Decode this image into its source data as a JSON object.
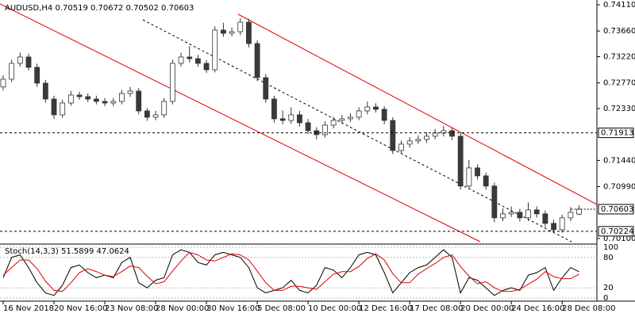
{
  "chart_data": [
    {
      "type": "candlestick",
      "title": "AUDUSD,H4  0.70519 0.70672 0.70502 0.70603",
      "categories": [
        "16 Nov 2018",
        null,
        null,
        null,
        null,
        null,
        "20 Nov 16:00",
        null,
        null,
        null,
        null,
        null,
        "23 Nov 08:00",
        null,
        null,
        null,
        null,
        null,
        "28 Nov 00:00",
        null,
        null,
        null,
        null,
        null,
        "30 Nov 16:00",
        null,
        null,
        null,
        null,
        null,
        "5 Dec 08:00",
        null,
        null,
        null,
        null,
        null,
        "10 Dec 00:00",
        null,
        null,
        null,
        null,
        null,
        "12 Dec 16:00",
        null,
        null,
        null,
        null,
        null,
        "17 Dec 08:00",
        null,
        null,
        null,
        null,
        null,
        "20 Dec 00:00",
        null,
        null,
        null,
        null,
        null,
        "24 Dec 16:00",
        null,
        null,
        null,
        null,
        null,
        "28 Dec 08:00",
        null,
        null
      ],
      "open": [
        0.727,
        0.72833,
        0.73105,
        0.73214,
        0.73037,
        0.72765,
        0.72493,
        0.72222,
        0.72425,
        0.72561,
        0.72534,
        0.72493,
        0.72452,
        0.72425,
        0.72452,
        0.72588,
        0.72629,
        0.72289,
        0.72181,
        0.72222,
        0.72452,
        0.73105,
        0.73214,
        0.73186,
        0.73105,
        0.72996,
        0.73676,
        0.73621,
        0.73648,
        0.73811,
        0.73445,
        0.7286,
        0.72493,
        0.72154,
        0.72126,
        0.72222,
        0.72086,
        0.7195,
        0.71882,
        0.72045,
        0.72126,
        0.72154,
        0.72181,
        0.72289,
        0.72357,
        0.72317,
        0.72126,
        0.7161,
        0.71719,
        0.71773,
        0.718,
        0.71855,
        0.71909,
        0.7195,
        0.71855,
        0.71,
        0.71311,
        0.71175,
        0.71,
        0.70455,
        0.70523,
        0.7055,
        0.70455,
        0.70591,
        0.70523,
        0.7036,
        0.70251,
        0.70455,
        0.70519
      ],
      "high": [
        0.729,
        0.7317,
        0.7329,
        0.7327,
        0.731,
        0.7282,
        0.7255,
        0.7248,
        0.7263,
        0.7262,
        0.7259,
        0.7255,
        0.7251,
        0.7251,
        0.7265,
        0.727,
        0.7268,
        0.7234,
        0.7229,
        0.7251,
        0.7317,
        0.7329,
        0.734,
        0.7325,
        0.7316,
        0.7374,
        0.738,
        0.7372,
        0.7388,
        0.7387,
        0.735,
        0.7292,
        0.7255,
        0.723,
        0.7235,
        0.7229,
        0.7215,
        0.7201,
        0.7211,
        0.7219,
        0.7222,
        0.7225,
        0.7235,
        0.7245,
        0.7242,
        0.7237,
        0.7218,
        0.7178,
        0.7184,
        0.7187,
        0.7192,
        0.7198,
        0.7203,
        0.7201,
        0.7191,
        0.7145,
        0.7137,
        0.7123,
        0.7106,
        0.7062,
        0.7065,
        0.7061,
        0.7072,
        0.7065,
        0.7058,
        0.7042,
        0.7051,
        0.7064,
        0.70672
      ],
      "low": [
        0.7264,
        0.7278,
        0.7305,
        0.7298,
        0.727,
        0.7243,
        0.7215,
        0.7217,
        0.7238,
        0.7248,
        0.7244,
        0.724,
        0.7237,
        0.7237,
        0.724,
        0.7253,
        0.7223,
        0.7212,
        0.7213,
        0.7217,
        0.724,
        0.7305,
        0.7312,
        0.7305,
        0.7294,
        0.7295,
        0.7356,
        0.7357,
        0.7359,
        0.7338,
        0.728,
        0.7243,
        0.7209,
        0.7206,
        0.7207,
        0.7202,
        0.7189,
        0.718,
        0.7183,
        0.7199,
        0.7207,
        0.721,
        0.7213,
        0.7223,
        0.7226,
        0.7206,
        0.7155,
        0.7155,
        0.7166,
        0.7172,
        0.7174,
        0.718,
        0.7185,
        0.7179,
        0.7094,
        0.7095,
        0.7111,
        0.7094,
        0.7038,
        0.704,
        0.7047,
        0.7039,
        0.704,
        0.7046,
        0.703,
        0.702,
        0.702,
        0.704,
        0.70502
      ],
      "close": [
        0.72833,
        0.73105,
        0.73214,
        0.73037,
        0.72765,
        0.72493,
        0.72222,
        0.72425,
        0.72561,
        0.72534,
        0.72493,
        0.72452,
        0.72425,
        0.72452,
        0.72588,
        0.72629,
        0.72289,
        0.72181,
        0.72222,
        0.72452,
        0.73105,
        0.73214,
        0.73186,
        0.73105,
        0.72996,
        0.73676,
        0.73621,
        0.73648,
        0.73811,
        0.73445,
        0.7286,
        0.72493,
        0.72154,
        0.72126,
        0.72222,
        0.72086,
        0.7195,
        0.71882,
        0.72045,
        0.72126,
        0.72154,
        0.72181,
        0.72289,
        0.72357,
        0.72317,
        0.72126,
        0.7161,
        0.71719,
        0.71773,
        0.718,
        0.71855,
        0.71909,
        0.7195,
        0.71855,
        0.71,
        0.71311,
        0.71175,
        0.71,
        0.70455,
        0.70523,
        0.7055,
        0.70455,
        0.70591,
        0.70523,
        0.7036,
        0.70251,
        0.70455,
        0.7055,
        0.70603
      ],
      "ylim": [
        0.70018,
        0.74192
      ],
      "yticks": [
        {
          "value": 0.7411,
          "label": "0.74110"
        },
        {
          "value": 0.7366,
          "label": "0.73660"
        },
        {
          "value": 0.7322,
          "label": "0.73220"
        },
        {
          "value": 0.7277,
          "label": "0.72770"
        },
        {
          "value": 0.7233,
          "label": "0.72330"
        },
        {
          "value": 0.7144,
          "label": "0.71440"
        },
        {
          "value": 0.7099,
          "label": "0.70990"
        },
        {
          "value": 0.701,
          "label": "0.70100"
        }
      ],
      "levels": [
        0.71913,
        0.70224
      ]
    },
    {
      "type": "line",
      "title": "Stoch(14,3,3) 51.5899 47.0624",
      "series": [
        {
          "color": "#000000",
          "values": [
            40,
            80,
            85,
            60,
            30,
            10,
            5,
            25,
            60,
            65,
            50,
            40,
            45,
            40,
            70,
            80,
            30,
            20,
            35,
            40,
            85,
            95,
            90,
            70,
            65,
            85,
            90,
            85,
            80,
            60,
            20,
            10,
            15,
            20,
            35,
            15,
            10,
            25,
            60,
            55,
            40,
            60,
            85,
            90,
            85,
            50,
            10,
            30,
            50,
            60,
            65,
            80,
            95,
            80,
            10,
            40,
            35,
            20,
            5,
            15,
            20,
            15,
            45,
            50,
            60,
            15,
            40,
            60,
            51.5899
          ]
        },
        {
          "color": "#e00000",
          "values": [
            45,
            60,
            75,
            75,
            58,
            33,
            15,
            13,
            30,
            50,
            58,
            52,
            45,
            42,
            52,
            63,
            60,
            43,
            28,
            32,
            53,
            73,
            90,
            85,
            75,
            73,
            80,
            87,
            85,
            75,
            53,
            30,
            15,
            15,
            23,
            23,
            20,
            17,
            32,
            47,
            52,
            52,
            62,
            78,
            87,
            75,
            48,
            30,
            30,
            47,
            58,
            68,
            80,
            85,
            62,
            43,
            28,
            32,
            20,
            13,
            13,
            17,
            27,
            37,
            52,
            42,
            38,
            38,
            47.0624
          ]
        }
      ],
      "ylim": [
        0,
        100
      ],
      "yticks": [
        0,
        20,
        80,
        100
      ]
    }
  ]
}
